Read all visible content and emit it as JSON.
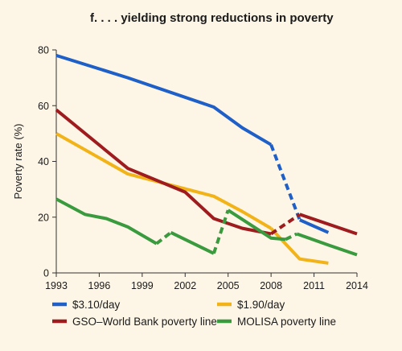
{
  "chart_data": {
    "type": "line",
    "title": "f. . . . yielding strong reductions in poverty",
    "xlabel": "",
    "ylabel": "Poverty rate (%)",
    "xlim": [
      1993,
      2014
    ],
    "ylim": [
      0,
      80
    ],
    "xticks": [
      1993,
      1996,
      1999,
      2002,
      2005,
      2008,
      2011,
      2014
    ],
    "yticks": [
      0,
      20,
      40,
      60,
      80
    ],
    "grid": false,
    "legend_position": "bottom",
    "series": [
      {
        "name": "$3.10/day",
        "color": "#1F5FC8",
        "segments": [
          {
            "style": "solid",
            "points": [
              [
                1993,
                78
              ],
              [
                1998,
                70
              ],
              [
                2004,
                59.5
              ],
              [
                2006,
                52
              ],
              [
                2008,
                46
              ]
            ]
          },
          {
            "style": "dashed",
            "points": [
              [
                2008,
                46
              ],
              [
                2010,
                19
              ]
            ]
          },
          {
            "style": "solid",
            "points": [
              [
                2010,
                19
              ],
              [
                2012,
                14.5
              ]
            ]
          }
        ]
      },
      {
        "name": "$1.90/day",
        "color": "#F2B318",
        "segments": [
          {
            "style": "solid",
            "points": [
              [
                1993,
                50
              ],
              [
                1998,
                35.5
              ],
              [
                2004,
                27.5
              ],
              [
                2006,
                22
              ],
              [
                2008,
                16
              ]
            ]
          },
          {
            "style": "solid",
            "points": [
              [
                2008,
                16
              ],
              [
                2010,
                5
              ],
              [
                2012,
                3.5
              ]
            ]
          }
        ]
      },
      {
        "name": "GSO–World Bank poverty line",
        "color": "#9E1B1E",
        "segments": [
          {
            "style": "solid",
            "points": [
              [
                1993,
                58.5
              ],
              [
                1998,
                37.5
              ],
              [
                2002,
                29
              ],
              [
                2004,
                19.5
              ],
              [
                2006,
                16
              ],
              [
                2008,
                14
              ]
            ]
          },
          {
            "style": "dashed",
            "points": [
              [
                2008,
                14
              ],
              [
                2010,
                21
              ]
            ]
          },
          {
            "style": "solid",
            "points": [
              [
                2010,
                21
              ],
              [
                2014,
                14
              ]
            ]
          }
        ]
      },
      {
        "name": "MOLISA poverty line",
        "color": "#3A9A3E",
        "segments": [
          {
            "style": "solid",
            "points": [
              [
                1993,
                26.5
              ],
              [
                1995,
                21
              ],
              [
                1996.5,
                19.5
              ],
              [
                1998,
                16.5
              ],
              [
                2000,
                10.5
              ]
            ]
          },
          {
            "style": "dashed",
            "points": [
              [
                2000,
                10.5
              ],
              [
                2001,
                14.5
              ]
            ]
          },
          {
            "style": "solid",
            "points": [
              [
                2001,
                14.5
              ],
              [
                2004,
                7
              ]
            ]
          },
          {
            "style": "dashed",
            "points": [
              [
                2004,
                7
              ],
              [
                2005,
                22.5
              ]
            ]
          },
          {
            "style": "solid",
            "points": [
              [
                2005,
                22.5
              ],
              [
                2008,
                12.5
              ],
              [
                2009,
                12
              ]
            ]
          },
          {
            "style": "dashed",
            "points": [
              [
                2009,
                12
              ],
              [
                2009.8,
                14
              ]
            ]
          },
          {
            "style": "solid",
            "points": [
              [
                2009.8,
                14
              ],
              [
                2012,
                10
              ],
              [
                2014,
                6.5
              ]
            ]
          }
        ]
      }
    ],
    "legend": [
      {
        "label": "$3.10/day",
        "color": "#1F5FC8"
      },
      {
        "label": "$1.90/day",
        "color": "#F2B318"
      },
      {
        "label": "GSO–World Bank poverty line",
        "color": "#9E1B1E"
      },
      {
        "label": "MOLISA poverty line",
        "color": "#3A9A3E"
      }
    ]
  }
}
